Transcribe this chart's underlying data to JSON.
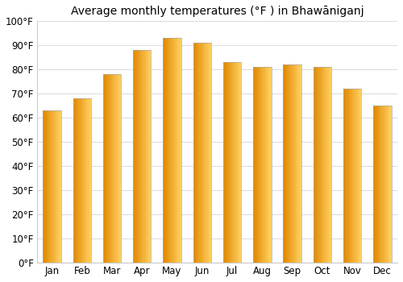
{
  "title": "Average monthly temperatures (°F ) in Bhawāniganj",
  "months": [
    "Jan",
    "Feb",
    "Mar",
    "Apr",
    "May",
    "Jun",
    "Jul",
    "Aug",
    "Sep",
    "Oct",
    "Nov",
    "Dec"
  ],
  "values": [
    63,
    68,
    78,
    88,
    93,
    91,
    83,
    81,
    82,
    81,
    72,
    65
  ],
  "bar_color_main": "#FFA500",
  "bar_color_light": "#FFD060",
  "bar_color_dark": "#E08800",
  "bar_edge_color": "#AAAAAA",
  "background_color": "#ffffff",
  "plot_bg_color": "#ffffff",
  "grid_color": "#dddddd",
  "ylim": [
    0,
    100
  ],
  "yticks": [
    0,
    10,
    20,
    30,
    40,
    50,
    60,
    70,
    80,
    90,
    100
  ],
  "ytick_labels": [
    "0°F",
    "10°F",
    "20°F",
    "30°F",
    "40°F",
    "50°F",
    "60°F",
    "70°F",
    "80°F",
    "90°F",
    "100°F"
  ],
  "title_fontsize": 10,
  "tick_fontsize": 8.5,
  "bar_width": 0.6,
  "gradient_steps": 20
}
